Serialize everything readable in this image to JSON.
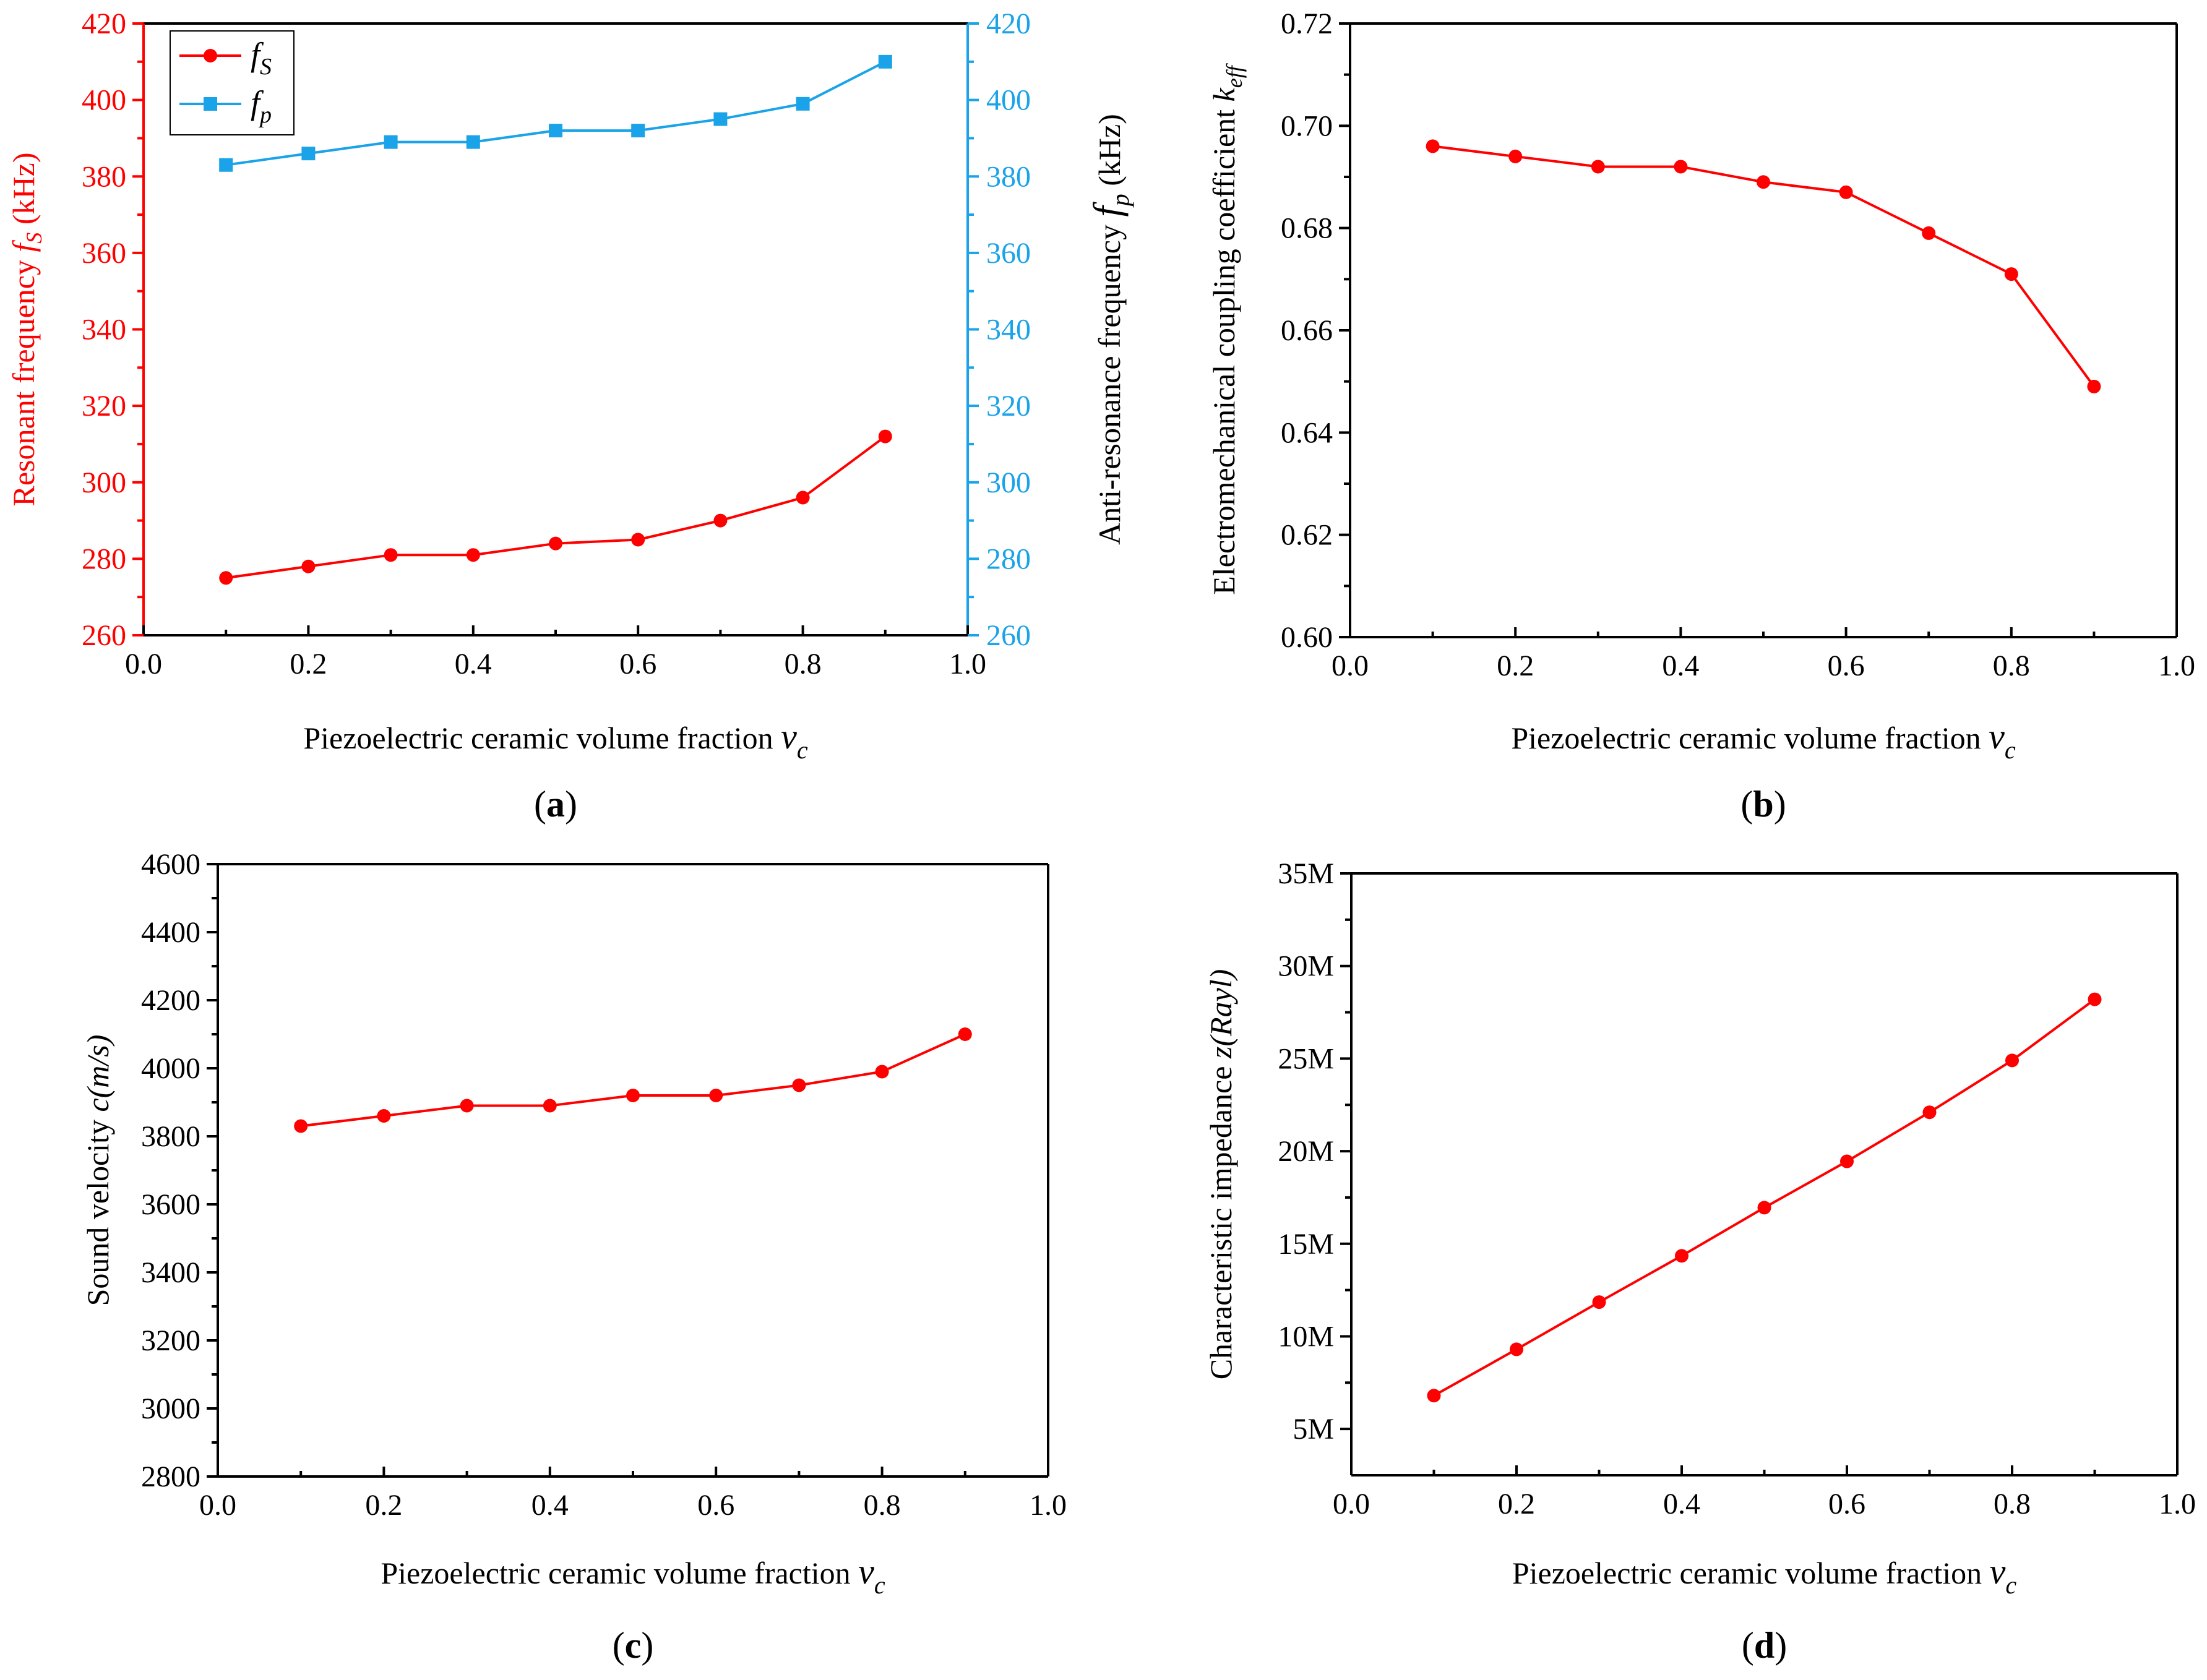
{
  "chart_data": [
    {
      "panel": "a",
      "type": "line",
      "panel_label": "a",
      "xlabel": "Piezoelectric ceramic volume fraction",
      "xlabel_var": "v",
      "xlabel_sub": "c",
      "xlim": [
        0.0,
        1.0
      ],
      "xticks": [
        "0.0",
        "0.2",
        "0.4",
        "0.6",
        "0.8",
        "1.0"
      ],
      "ylabel": "Resonant frequency",
      "ylabel_var": "f",
      "ylabel_sub": "S",
      "ylabel_unit": "(kHz)",
      "y2label": "Anti-resonance frequency",
      "y2label_var": "f",
      "y2label_sub": "p",
      "y2label_unit": "(kHz)",
      "ylim": [
        260,
        420
      ],
      "y2lim": [
        260,
        420
      ],
      "yticks": [
        "260",
        "280",
        "300",
        "320",
        "340",
        "360",
        "380",
        "400",
        "420"
      ],
      "legend_position": "top-left",
      "x": [
        0.1,
        0.2,
        0.3,
        0.4,
        0.5,
        0.6,
        0.7,
        0.8,
        0.9
      ],
      "series": [
        {
          "name": "fS",
          "name_var": "f",
          "name_sub": "S",
          "axis": "left",
          "color": "#ff0000",
          "marker": "circle",
          "values": [
            275,
            278,
            281,
            281,
            284,
            285,
            290,
            296,
            312
          ]
        },
        {
          "name": "fp",
          "name_var": "f",
          "name_sub": "p",
          "axis": "right",
          "color": "#1aa3e8",
          "marker": "square",
          "values": [
            383,
            386,
            389,
            389,
            392,
            392,
            395,
            399,
            410
          ]
        }
      ]
    },
    {
      "panel": "b",
      "type": "line",
      "panel_label": "b",
      "xlabel": "Piezoelectric ceramic volume fraction",
      "xlabel_var": "v",
      "xlabel_sub": "c",
      "xlim": [
        0.0,
        1.0
      ],
      "xticks": [
        "0.0",
        "0.2",
        "0.4",
        "0.6",
        "0.8",
        "1.0"
      ],
      "ylabel": "Electromechanical coupling coefficient",
      "ylabel_var": "k",
      "ylabel_sub": "eff",
      "ylabel_unit": "",
      "ylim": [
        0.6,
        0.72
      ],
      "yticks": [
        "0.60",
        "0.62",
        "0.64",
        "0.66",
        "0.68",
        "0.70",
        "0.72"
      ],
      "x": [
        0.1,
        0.2,
        0.3,
        0.4,
        0.5,
        0.6,
        0.7,
        0.8,
        0.9
      ],
      "series": [
        {
          "name": "keff",
          "color": "#ff0000",
          "marker": "circle",
          "values": [
            0.696,
            0.694,
            0.692,
            0.692,
            0.689,
            0.687,
            0.679,
            0.671,
            0.649
          ]
        }
      ]
    },
    {
      "panel": "c",
      "type": "line",
      "panel_label": "c",
      "xlabel": "Piezoelectric ceramic volume fraction",
      "xlabel_var": "v",
      "xlabel_sub": "c",
      "xlim": [
        0.0,
        1.0
      ],
      "xticks": [
        "0.0",
        "0.2",
        "0.4",
        "0.6",
        "0.8",
        "1.0"
      ],
      "ylabel": "Sound velocity",
      "ylabel_var": "c(m/s)",
      "ylabel_sub": "",
      "ylabel_unit": "",
      "ylim": [
        2800,
        4600
      ],
      "yticks": [
        "2800",
        "3000",
        "3200",
        "3400",
        "3600",
        "3800",
        "4000",
        "4200",
        "4400",
        "4600"
      ],
      "x": [
        0.1,
        0.2,
        0.3,
        0.4,
        0.5,
        0.6,
        0.7,
        0.8,
        0.9
      ],
      "series": [
        {
          "name": "c",
          "color": "#ff0000",
          "marker": "circle",
          "values": [
            3830,
            3860,
            3890,
            3890,
            3920,
            3920,
            3950,
            3990,
            4100
          ]
        }
      ]
    },
    {
      "panel": "d",
      "type": "line",
      "panel_label": "d",
      "xlabel": "Piezoelectric ceramic volume fraction",
      "xlabel_var": "v",
      "xlabel_sub": "c",
      "xlim": [
        0.0,
        1.0
      ],
      "xticks": [
        "0.0",
        "0.2",
        "0.4",
        "0.6",
        "0.8",
        "1.0"
      ],
      "ylabel": "Characteristic impedance",
      "ylabel_var": "z(Rayl)",
      "ylabel_sub": "",
      "ylabel_unit": "",
      "ylim": [
        2500000,
        35000000
      ],
      "ytick_values": [
        5000000,
        10000000,
        15000000,
        20000000,
        25000000,
        30000000,
        35000000
      ],
      "yticks": [
        "5M",
        "10M",
        "15M",
        "20M",
        "25M",
        "30M",
        "35M"
      ],
      "x": [
        0.1,
        0.2,
        0.3,
        0.4,
        0.5,
        0.6,
        0.7,
        0.8,
        0.9
      ],
      "series": [
        {
          "name": "z",
          "color": "#ff0000",
          "marker": "circle",
          "values": [
            6800000,
            9300000,
            11850000,
            14350000,
            16950000,
            19450000,
            22100000,
            24900000,
            28200000
          ]
        }
      ]
    }
  ]
}
